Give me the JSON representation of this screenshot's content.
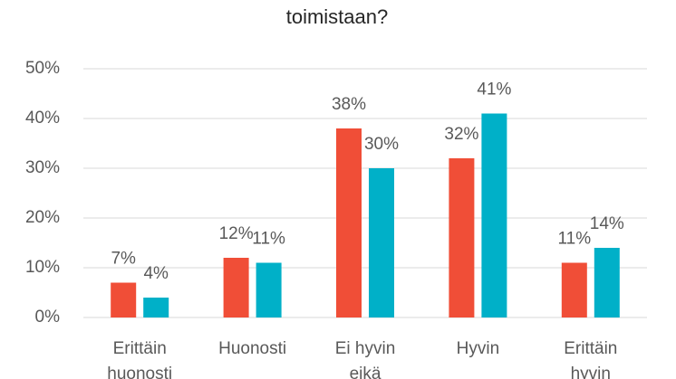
{
  "chart_data": {
    "type": "bar",
    "title": "toimistaan?",
    "categories": [
      "Erittäin huonosti",
      "Huonosti",
      "Ei hyvin eikä",
      "Hyvin",
      "Erittäin hyvin"
    ],
    "series": [
      {
        "color": "#f04e37",
        "values": [
          7,
          12,
          38,
          32,
          11
        ],
        "value_labels": [
          "7%",
          "12%",
          "38%",
          "32%",
          "11%"
        ]
      },
      {
        "color": "#00b0c8",
        "values": [
          4,
          11,
          30,
          41,
          14
        ],
        "value_labels": [
          "4%",
          "11%",
          "30%",
          "41%",
          "14%"
        ]
      }
    ],
    "ylim": [
      0,
      50
    ],
    "yticks": [
      {
        "value": 0,
        "label": "0%"
      },
      {
        "value": 10,
        "label": "10%"
      },
      {
        "value": 20,
        "label": "20%"
      },
      {
        "value": 30,
        "label": "30%"
      },
      {
        "value": 40,
        "label": "40%"
      },
      {
        "value": 50,
        "label": "50%"
      }
    ],
    "grid": true
  }
}
